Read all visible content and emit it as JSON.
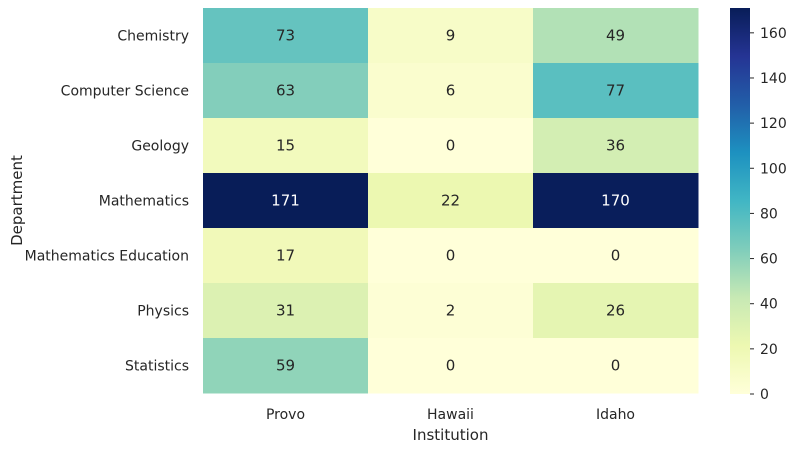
{
  "chart_data": {
    "type": "heatmap",
    "title": "",
    "xlabel": "Institution",
    "ylabel": "Department",
    "columns": [
      "Provo",
      "Hawaii",
      "Idaho"
    ],
    "rows": [
      "Chemistry",
      "Computer Science",
      "Geology",
      "Mathematics",
      "Mathematics Education",
      "Physics",
      "Statistics"
    ],
    "values": [
      [
        73,
        9,
        49
      ],
      [
        63,
        6,
        77
      ],
      [
        15,
        0,
        36
      ],
      [
        171,
        22,
        170
      ],
      [
        17,
        0,
        0
      ],
      [
        31,
        2,
        26
      ],
      [
        59,
        0,
        0
      ]
    ],
    "colormap": "YlGnBu",
    "vmin": 0,
    "vmax": 171,
    "colorbar_ticks": [
      0,
      20,
      40,
      60,
      80,
      100,
      120,
      140,
      160
    ],
    "annotations": true,
    "grid": false
  }
}
